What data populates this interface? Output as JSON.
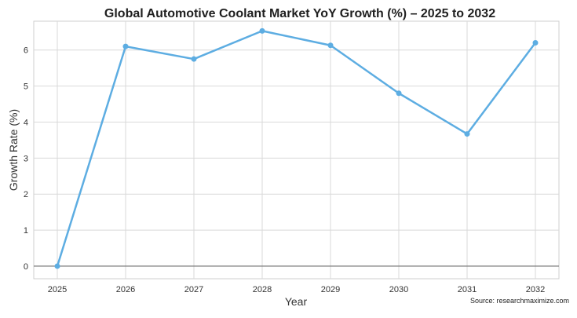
{
  "chart_data": {
    "type": "line",
    "title": "Global Automotive Coolant Market YoY Growth (%) – 2025 to 2032",
    "xlabel": "Year",
    "ylabel": "Growth Rate (%)",
    "x": [
      2025,
      2026,
      2027,
      2028,
      2029,
      2030,
      2031,
      2032
    ],
    "series": [
      {
        "values": [
          0,
          6.1,
          5.75,
          6.53,
          6.13,
          4.8,
          3.67,
          6.2
        ],
        "color": "#5dade2"
      }
    ],
    "ylim": [
      -0.35,
      6.8
    ],
    "yticks": [
      0,
      1,
      2,
      3,
      4,
      5,
      6
    ],
    "grid": true,
    "legend": "none",
    "source": "Source: researchmaximize.com",
    "colors": {
      "line": "#5dade2",
      "grid": "#d9d9d9",
      "zero_line": "#6e6e6e",
      "frame": "#cfcfcf"
    }
  }
}
